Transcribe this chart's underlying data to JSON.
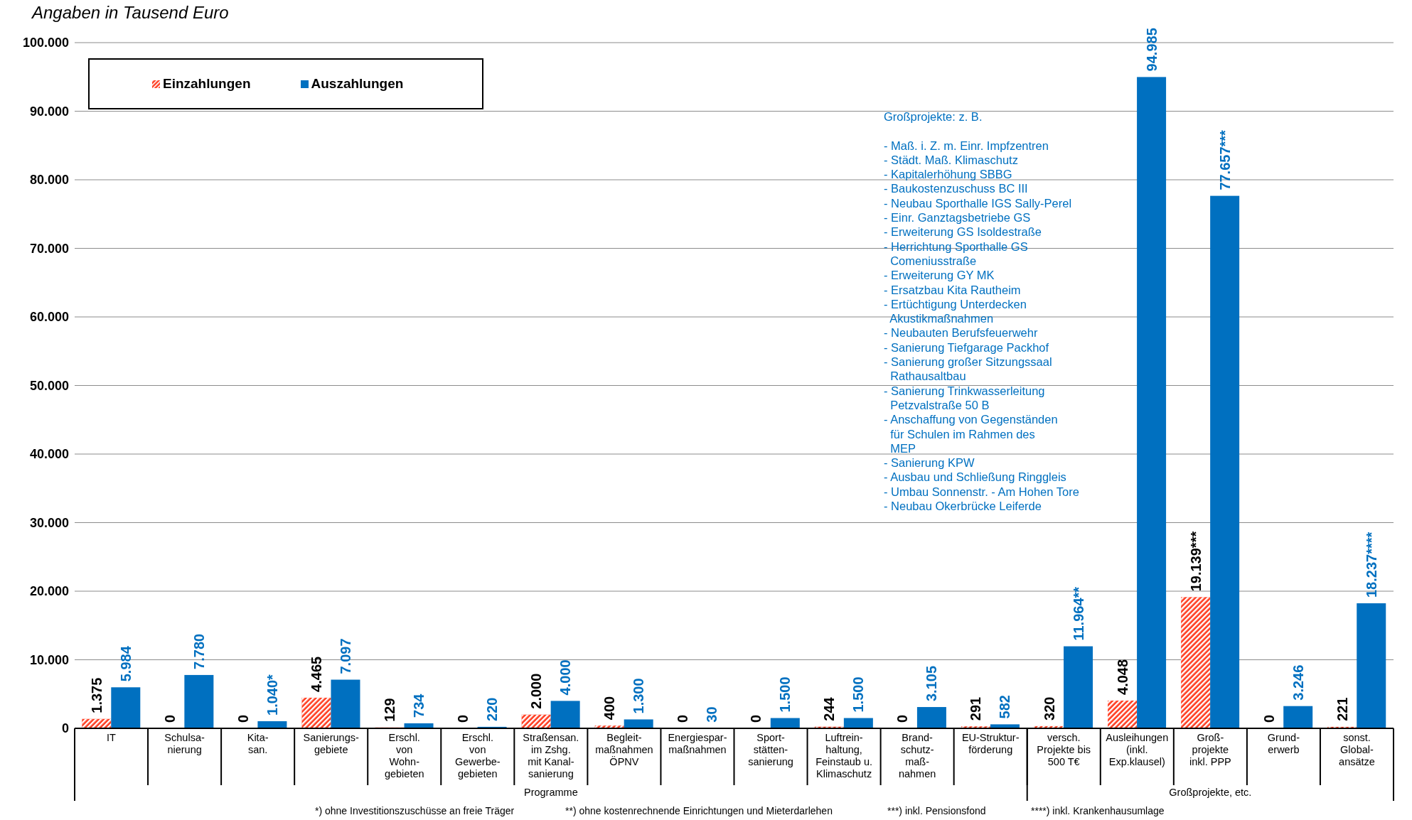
{
  "chart_data": {
    "type": "bar",
    "title": "Angaben in Tausend Euro",
    "categories": [
      "IT",
      "Schulsa-\nnierung",
      "Kita-\nsan.",
      "Sanierungs-\ngebiete",
      "Erschl.\nvon\nWohn-\ngebieten",
      "Erschl.\nvon\nGewerbe-\ngebieten",
      "Straßensan.\nim Zshg.\nmit Kanal-\nsanierung",
      "Begleit-\nmaßnahmen\nÖPNV",
      "Energiespar-\nmaßnahmen",
      "Sport-\nstätten-\nsanierung",
      "Luftrein-\nhaltung,\nFeinstaub u.\nKlimaschutz",
      "Brand-\nschutz-\nmaß-\nnahmen",
      "EU-Struktur-\nförderung",
      "versch.\nProjekte bis\n500 T€",
      "Ausleihungen\n(inkl.\nExp.klausel)",
      "Groß-\nprojekte\ninkl. PPP",
      "Grund-\nerwerb",
      "sonst.\nGlobal-\nansätze"
    ],
    "series": [
      {
        "name": "Einzahlungen",
        "color": "#ff3b1f",
        "values": [
          1375,
          0,
          0,
          4465,
          129,
          0,
          2000,
          400,
          0,
          0,
          244,
          0,
          291,
          320,
          4048,
          19139,
          0,
          221
        ],
        "value_labels": [
          "1.375",
          "0",
          "0",
          "4.465",
          "129",
          "0",
          "2.000",
          "400",
          "0",
          "0",
          "244",
          "0",
          "291",
          "320",
          "4.048",
          "19.139***",
          "0",
          "221"
        ]
      },
      {
        "name": "Auszahlungen",
        "color": "#0070c0",
        "values": [
          5984,
          7780,
          1040,
          7097,
          734,
          220,
          4000,
          1300,
          30,
          1500,
          1500,
          3105,
          582,
          11964,
          94985,
          77657,
          3246,
          18237
        ],
        "value_labels": [
          "5.984",
          "7.780",
          "1.040*",
          "7.097",
          "734",
          "220",
          "4.000",
          "1.300",
          "30",
          "1.500",
          "1.500",
          "3.105",
          "582",
          "11.964**",
          "94.985",
          "77.657***",
          "3.246",
          "18.237****"
        ]
      }
    ],
    "ylim": [
      0,
      100000
    ],
    "yticks": [
      {
        "value": 0,
        "label": "0"
      },
      {
        "value": 10000,
        "label": "10.000"
      },
      {
        "value": 20000,
        "label": "20.000"
      },
      {
        "value": 30000,
        "label": "30.000"
      },
      {
        "value": 40000,
        "label": "40.000"
      },
      {
        "value": 50000,
        "label": "50.000"
      },
      {
        "value": 60000,
        "label": "60.000"
      },
      {
        "value": 70000,
        "label": "70.000"
      },
      {
        "value": 80000,
        "label": "80.000"
      },
      {
        "value": 90000,
        "label": "90.000"
      },
      {
        "value": 100000,
        "label": "100.000"
      }
    ],
    "grid": "y",
    "legend": "top left",
    "annotations": [
      "Programme",
      "Großprojekte, etc.",
      "*) ohne Investitionszuschüsse an freie Träger",
      "**) ohne kostenrechnende Einrichtungen und Mieterdarlehen",
      "***) inkl. Pensionsfond",
      "****) inkl. Krankenhausumlage",
      "Großprojekte: z. B.\n\n- Maß. i. Z. m. Einr. Impfzentren\n- Städt. Maß. Klimaschutz\n- Kapitalerhöhung SBBG\n- Baukostenzuschuss BC III\n- Neubau Sporthalle IGS Sally-Perel\n- Einr. Ganztagsbetriebe GS\n- Erweiterung GS Isoldestraße\n- Herrichtung Sporthalle GS\n  Comeniusstraße\n- Erweiterung GY MK\n- Ersatzbau Kita Rautheim\n- Ertüchtigung Unterdecken\n  Akustikmaßnahmen\n- Neubauten Berufsfeuerwehr\n- Sanierung Tiefgarage Packhof\n- Sanierung großer Sitzungssaal\n  Rathausaltbau\n- Sanierung Trinkwasserleitung\n  Petzvalstraße 50 B\n- Anschaffung von Gegenständen\n  für Schulen im Rahmen des\n  MEP\n- Sanierung KPW\n- Ausbau und Schließung Ringgleis\n- Umbau Sonnenstr. - Am Hohen Tore\n- Neubau Okerbrücke Leiferde"
    ]
  }
}
